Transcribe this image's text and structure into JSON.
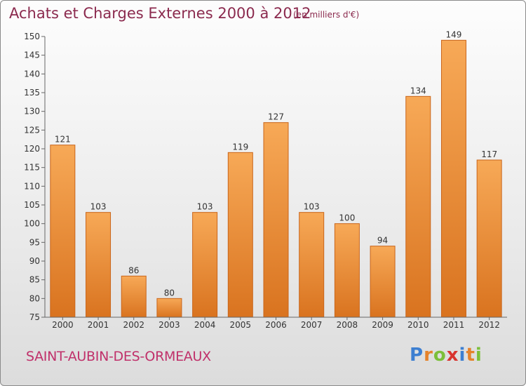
{
  "header": {
    "title": "Achats et Charges Externes 2000 à 2012",
    "unit": "(en milliers d'€)"
  },
  "footer": {
    "town": "SAINT-AUBIN-DES-ORMEAUX",
    "logo_text": "Proxiti"
  },
  "colors": {
    "bar_top": "#f7a957",
    "bar_bottom": "#d9731f",
    "bar_edge": "#c9651a",
    "text": "#333333",
    "axis": "#666666",
    "logo_letters": [
      "#3d7fd1",
      "#e5822a",
      "#7bbf3a",
      "#d8342f",
      "#3d7fd1",
      "#e5822a",
      "#7bbf3a"
    ]
  },
  "chart_data": {
    "type": "bar",
    "title": "Achats et Charges Externes 2000 à 2012",
    "subtitle": "(en milliers d'€)",
    "xlabel": "",
    "ylabel": "",
    "categories": [
      "2000",
      "2001",
      "2002",
      "2003",
      "2004",
      "2005",
      "2006",
      "2007",
      "2008",
      "2009",
      "2010",
      "2011",
      "2012"
    ],
    "values": [
      121,
      103,
      86,
      80,
      103,
      119,
      127,
      103,
      100,
      94,
      134,
      149,
      117
    ],
    "ylim": [
      75,
      150
    ],
    "yticks": [
      75,
      80,
      85,
      90,
      95,
      100,
      105,
      110,
      115,
      120,
      125,
      130,
      135,
      140,
      145,
      150
    ],
    "grid": false,
    "legend": "none",
    "data_labels": true
  }
}
